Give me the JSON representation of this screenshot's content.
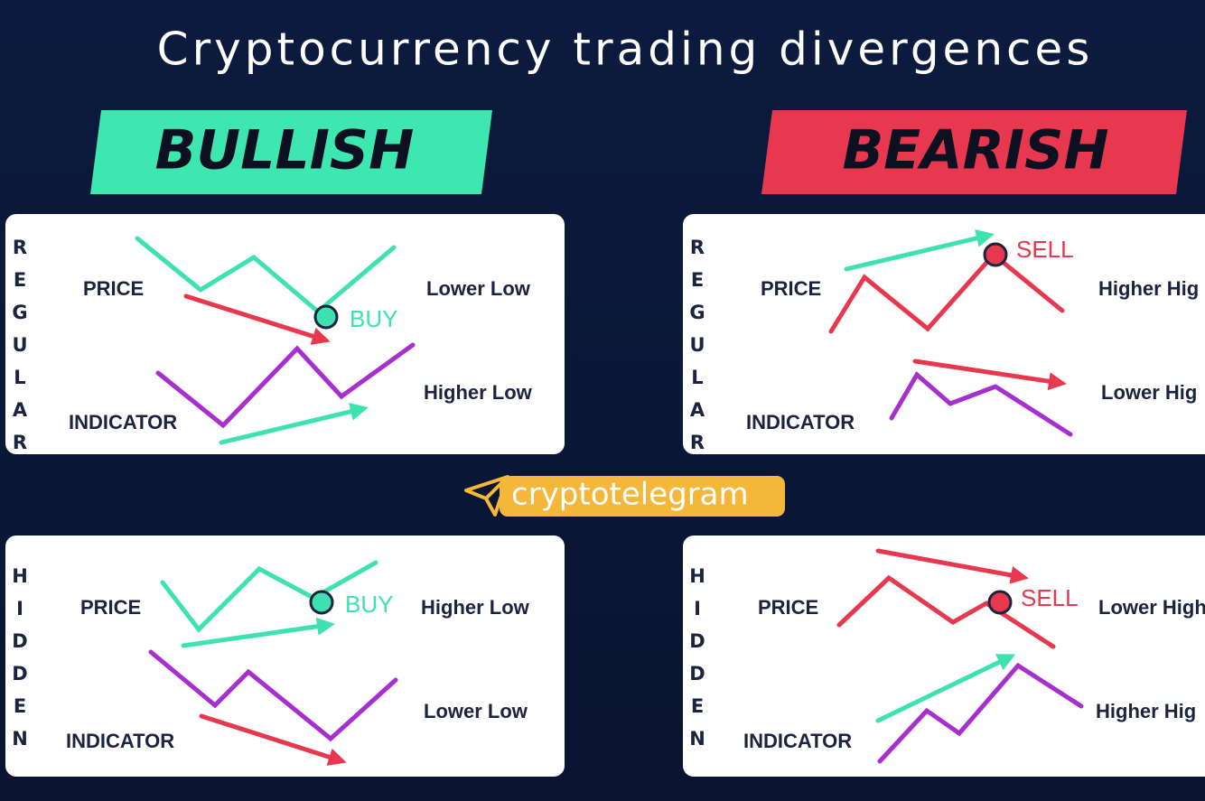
{
  "header": {
    "title": "Cryptocurrency trading divergences"
  },
  "sections": [
    {
      "badge": "BULLISH"
    },
    {
      "badge": "BEARISH"
    }
  ],
  "panels": [
    {
      "type_label": "REGULAR",
      "price_label": "PRICE",
      "indicator_label": "INDICATOR",
      "price_note": "Lower Low",
      "indicator_note": "Higher Low",
      "signal": "BUY"
    },
    {
      "type_label": "REGULAR",
      "price_label": "PRICE",
      "indicator_label": "INDICATOR",
      "price_note": "Higher Hig",
      "indicator_note": "Lower Hig",
      "signal": "SELL"
    },
    {
      "type_label": "HIDDEN",
      "price_label": "PRICE",
      "indicator_label": "INDICATOR",
      "price_note": "Higher Low",
      "indicator_note": "Lower Low",
      "signal": "BUY"
    },
    {
      "type_label": "HIDDEN",
      "price_label": "PRICE",
      "indicator_label": "INDICATOR",
      "price_note": "Lower High",
      "indicator_note": "Higher Hig",
      "signal": "SELL"
    }
  ],
  "brand": {
    "name": "cryptotelegram"
  }
}
